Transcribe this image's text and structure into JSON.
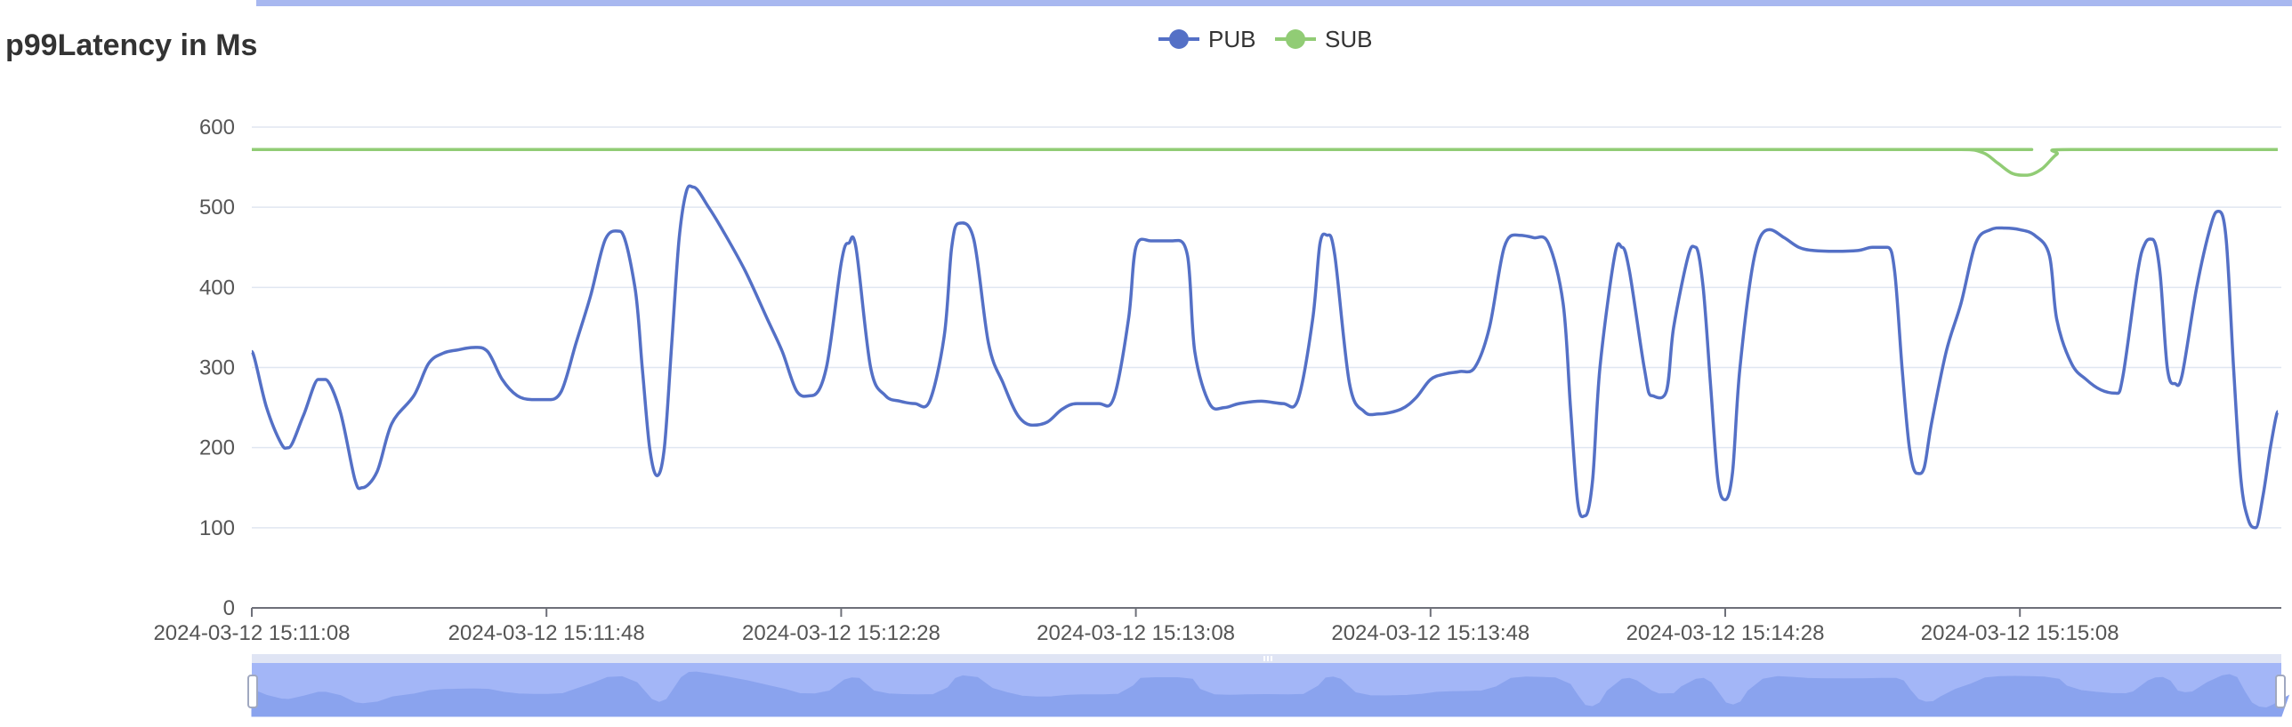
{
  "chart_data": {
    "type": "line",
    "title": "p99Latency in Ms",
    "legend_position": "top-center",
    "grid": true,
    "ylim": [
      0,
      600
    ],
    "yticks": [
      "0",
      "100",
      "200",
      "300",
      "400",
      "500",
      "600"
    ],
    "xtick_labels": [
      "2024-03-12 15:11:08",
      "2024-03-12 15:11:48",
      "2024-03-12 15:12:28",
      "2024-03-12 15:13:08",
      "2024-03-12 15:13:48",
      "2024-03-12 15:14:28",
      "2024-03-12 15:15:08"
    ],
    "x_time_range": [
      "2024-03-12 15:11:08",
      "2024-03-12 15:15:42"
    ],
    "datazoom": true,
    "series": [
      {
        "name": "PUB",
        "color": "#5470c6",
        "points": [
          [
            "15:11:08",
            320
          ],
          [
            "15:11:10",
            250
          ],
          [
            "15:11:12",
            205
          ],
          [
            "15:11:13",
            200
          ],
          [
            "15:11:15",
            240
          ],
          [
            "15:11:17",
            285
          ],
          [
            "15:11:18",
            285
          ],
          [
            "15:11:20",
            245
          ],
          [
            "15:11:22",
            160
          ],
          [
            "15:11:23",
            150
          ],
          [
            "15:11:25",
            170
          ],
          [
            "15:11:27",
            230
          ],
          [
            "15:11:30",
            265
          ],
          [
            "15:11:32",
            305
          ],
          [
            "15:11:34",
            318
          ],
          [
            "15:11:36",
            322
          ],
          [
            "15:11:38",
            325
          ],
          [
            "15:11:40",
            320
          ],
          [
            "15:11:42",
            285
          ],
          [
            "15:11:44",
            265
          ],
          [
            "15:11:46",
            260
          ],
          [
            "15:11:48",
            260
          ],
          [
            "15:11:50",
            270
          ],
          [
            "15:11:52",
            330
          ],
          [
            "15:11:54",
            390
          ],
          [
            "15:11:56",
            460
          ],
          [
            "15:11:58",
            470
          ],
          [
            "15:12:00",
            400
          ],
          [
            "15:12:01",
            300
          ],
          [
            "15:12:02",
            200
          ],
          [
            "15:12:03",
            165
          ],
          [
            "15:12:04",
            200
          ],
          [
            "15:12:05",
            330
          ],
          [
            "15:12:06",
            460
          ],
          [
            "15:12:07",
            520
          ],
          [
            "15:12:08",
            525
          ],
          [
            "15:12:10",
            500
          ],
          [
            "15:12:12",
            470
          ],
          [
            "15:12:15",
            420
          ],
          [
            "15:12:18",
            360
          ],
          [
            "15:12:20",
            320
          ],
          [
            "15:12:22",
            270
          ],
          [
            "15:12:24",
            265
          ],
          [
            "15:12:26",
            300
          ],
          [
            "15:12:28",
            430
          ],
          [
            "15:12:29",
            455
          ],
          [
            "15:12:30",
            450
          ],
          [
            "15:12:32",
            300
          ],
          [
            "15:12:34",
            265
          ],
          [
            "15:12:36",
            258
          ],
          [
            "15:12:38",
            255
          ],
          [
            "15:12:40",
            258
          ],
          [
            "15:12:42",
            340
          ],
          [
            "15:12:43",
            450
          ],
          [
            "15:12:44",
            480
          ],
          [
            "15:12:46",
            460
          ],
          [
            "15:12:48",
            330
          ],
          [
            "15:12:50",
            280
          ],
          [
            "15:12:52",
            240
          ],
          [
            "15:12:54",
            228
          ],
          [
            "15:12:56",
            232
          ],
          [
            "15:12:58",
            248
          ],
          [
            "15:13:00",
            255
          ],
          [
            "15:13:03",
            255
          ],
          [
            "15:13:05",
            262
          ],
          [
            "15:13:07",
            360
          ],
          [
            "15:13:08",
            450
          ],
          [
            "15:13:10",
            458
          ],
          [
            "15:13:13",
            458
          ],
          [
            "15:13:15",
            440
          ],
          [
            "15:13:16",
            320
          ],
          [
            "15:13:18",
            255
          ],
          [
            "15:13:20",
            250
          ],
          [
            "15:13:22",
            255
          ],
          [
            "15:13:25",
            258
          ],
          [
            "15:13:28",
            255
          ],
          [
            "15:13:30",
            260
          ],
          [
            "15:13:32",
            360
          ],
          [
            "15:13:33",
            455
          ],
          [
            "15:13:34",
            465
          ],
          [
            "15:13:35",
            440
          ],
          [
            "15:13:37",
            280
          ],
          [
            "15:13:39",
            245
          ],
          [
            "15:13:41",
            242
          ],
          [
            "15:13:44",
            248
          ],
          [
            "15:13:46",
            262
          ],
          [
            "15:13:48",
            285
          ],
          [
            "15:13:50",
            292
          ],
          [
            "15:13:52",
            295
          ],
          [
            "15:13:54",
            300
          ],
          [
            "15:13:56",
            350
          ],
          [
            "15:13:58",
            450
          ],
          [
            "15:14:00",
            465
          ],
          [
            "15:14:02",
            462
          ],
          [
            "15:14:04",
            455
          ],
          [
            "15:14:06",
            380
          ],
          [
            "15:14:07",
            250
          ],
          [
            "15:14:08",
            130
          ],
          [
            "15:14:09",
            115
          ],
          [
            "15:14:10",
            160
          ],
          [
            "15:14:11",
            300
          ],
          [
            "15:14:13",
            440
          ],
          [
            "15:14:14",
            450
          ],
          [
            "15:14:15",
            420
          ],
          [
            "15:14:17",
            300
          ],
          [
            "15:14:18",
            265
          ],
          [
            "15:14:20",
            270
          ],
          [
            "15:14:21",
            350
          ],
          [
            "15:14:23",
            440
          ],
          [
            "15:14:24",
            450
          ],
          [
            "15:14:25",
            400
          ],
          [
            "15:14:26",
            280
          ],
          [
            "15:14:27",
            160
          ],
          [
            "15:14:28",
            135
          ],
          [
            "15:14:29",
            170
          ],
          [
            "15:14:30",
            300
          ],
          [
            "15:14:32",
            440
          ],
          [
            "15:14:34",
            472
          ],
          [
            "15:14:36",
            462
          ],
          [
            "15:14:38",
            450
          ],
          [
            "15:14:40",
            446
          ],
          [
            "15:14:43",
            445
          ],
          [
            "15:14:46",
            446
          ],
          [
            "15:14:48",
            450
          ],
          [
            "15:14:50",
            450
          ],
          [
            "15:14:51",
            420
          ],
          [
            "15:14:52",
            300
          ],
          [
            "15:14:53",
            200
          ],
          [
            "15:14:54",
            168
          ],
          [
            "15:14:55",
            175
          ],
          [
            "15:14:56",
            230
          ],
          [
            "15:14:58",
            320
          ],
          [
            "15:15:00",
            380
          ],
          [
            "15:15:02",
            455
          ],
          [
            "15:15:04",
            472
          ],
          [
            "15:15:06",
            474
          ],
          [
            "15:15:08",
            472
          ],
          [
            "15:15:10",
            465
          ],
          [
            "15:15:12",
            440
          ],
          [
            "15:15:13",
            360
          ],
          [
            "15:15:15",
            305
          ],
          [
            "15:15:17",
            285
          ],
          [
            "15:15:19",
            272
          ],
          [
            "15:15:21",
            268
          ],
          [
            "15:15:22",
            290
          ],
          [
            "15:15:24",
            420
          ],
          [
            "15:15:25",
            455
          ],
          [
            "15:15:26",
            460
          ],
          [
            "15:15:27",
            420
          ],
          [
            "15:15:28",
            300
          ],
          [
            "15:15:29",
            280
          ],
          [
            "15:15:30",
            290
          ],
          [
            "15:15:32",
            400
          ],
          [
            "15:15:34",
            480
          ],
          [
            "15:15:35",
            495
          ],
          [
            "15:15:36",
            460
          ],
          [
            "15:15:37",
            300
          ],
          [
            "15:15:38",
            160
          ],
          [
            "15:15:39",
            110
          ],
          [
            "15:15:40",
            100
          ],
          [
            "15:15:41",
            140
          ],
          [
            "15:15:42",
            200
          ],
          [
            "15:15:43",
            245
          ]
        ]
      },
      {
        "name": "SUB",
        "color": "#91cc75",
        "points": [
          [
            "15:11:08",
            572
          ],
          [
            "15:14:50",
            572
          ],
          [
            "15:15:00",
            572
          ],
          [
            "15:15:03",
            568
          ],
          [
            "15:15:05",
            555
          ],
          [
            "15:15:07",
            542
          ],
          [
            "15:15:09",
            540
          ],
          [
            "15:15:11",
            548
          ],
          [
            "15:15:13",
            566
          ],
          [
            "15:15:15",
            572
          ],
          [
            "15:15:43",
            572
          ]
        ]
      }
    ]
  }
}
